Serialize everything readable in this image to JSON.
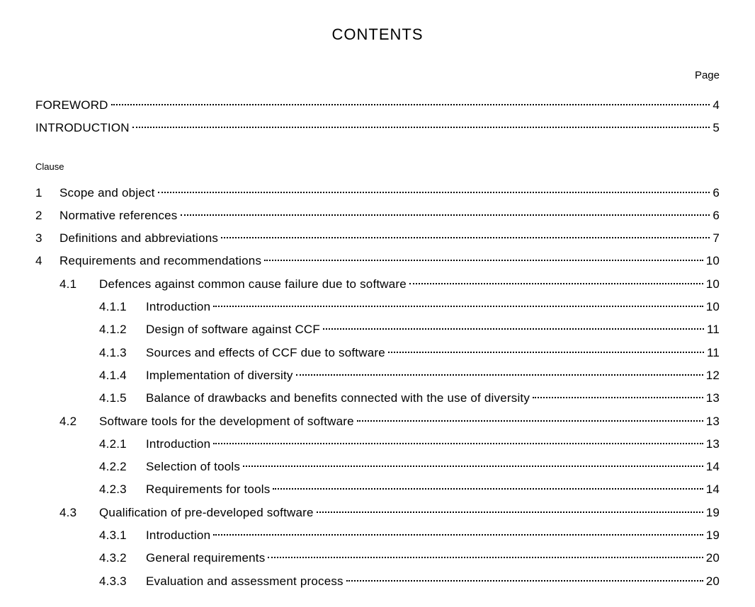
{
  "title": "CONTENTS",
  "page_label": "Page",
  "clause_label": "Clause",
  "front": [
    {
      "label": "FOREWORD",
      "page": "4"
    },
    {
      "label": "INTRODUCTION",
      "page": "5"
    }
  ],
  "clauses": [
    {
      "num": "1",
      "title": "Scope and object",
      "page": "6"
    },
    {
      "num": "2",
      "title": "Normative references",
      "page": "6"
    },
    {
      "num": "3",
      "title": "Definitions and abbreviations",
      "page": "7"
    },
    {
      "num": "4",
      "title": "Requirements and recommendations",
      "page": "10",
      "subs": [
        {
          "num": "4.1",
          "title": "Defences against common cause failure due to software",
          "page": "10",
          "subsubs": [
            {
              "num": "4.1.1",
              "title": "Introduction",
              "page": "10"
            },
            {
              "num": "4.1.2",
              "title": "Design of software against CCF",
              "page": "11"
            },
            {
              "num": "4.1.3",
              "title": "Sources and effects of CCF due to software",
              "page": "11"
            },
            {
              "num": "4.1.4",
              "title": "Implementation of diversity",
              "page": "12"
            },
            {
              "num": "4.1.5",
              "title": "Balance of drawbacks and benefits connected with the use of diversity",
              "page": "13"
            }
          ]
        },
        {
          "num": "4.2",
          "title": "Software tools for the development of software",
          "page": "13",
          "subsubs": [
            {
              "num": "4.2.1",
              "title": "Introduction",
              "page": "13"
            },
            {
              "num": "4.2.2",
              "title": "Selection of tools",
              "page": "14"
            },
            {
              "num": "4.2.3",
              "title": "Requirements for tools",
              "page": "14"
            }
          ]
        },
        {
          "num": "4.3",
          "title": "Qualification of pre-developed software",
          "page": "19",
          "subsubs": [
            {
              "num": "4.3.1",
              "title": "Introduction",
              "page": "19"
            },
            {
              "num": "4.3.2",
              "title": "General requirements",
              "page": "20"
            },
            {
              "num": "4.3.3",
              "title": "Evaluation and assessment process",
              "page": "20"
            }
          ]
        }
      ]
    }
  ]
}
